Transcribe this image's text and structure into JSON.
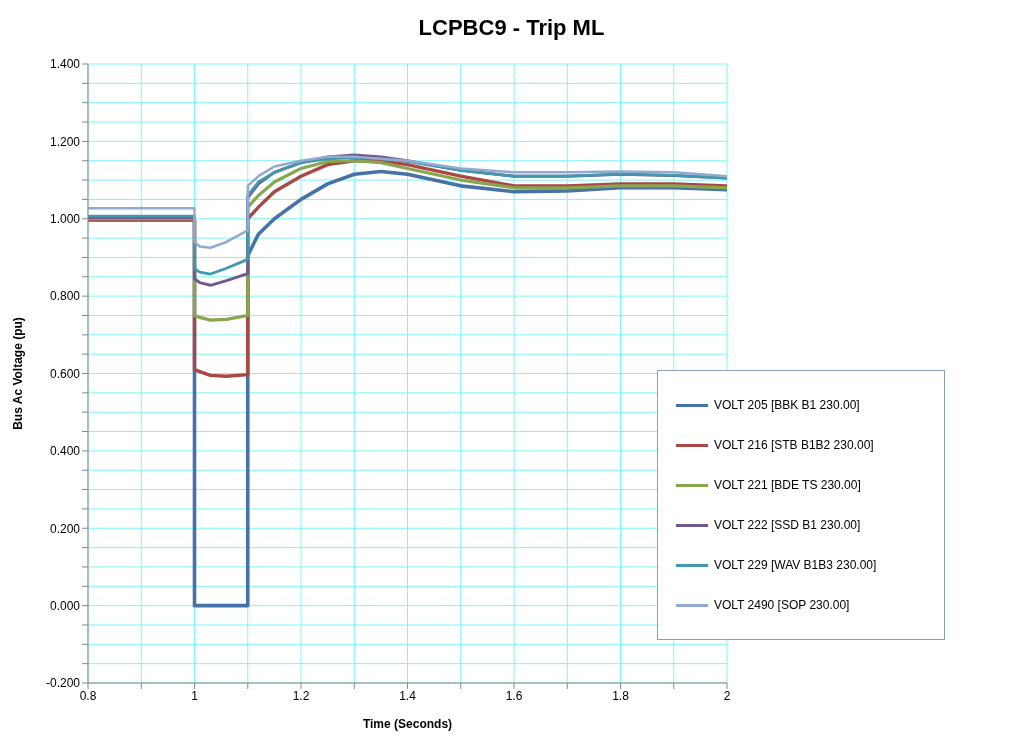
{
  "chart_data": {
    "type": "line",
    "title": "LCPBC9 - Trip ML",
    "xlabel": "Time (Seconds)",
    "ylabel": "Bus Ac Voltage (pu)",
    "x": [
      0.8,
      1,
      1,
      1.01,
      1.03,
      1.06,
      1.1,
      1.1,
      1.12,
      1.15,
      1.2,
      1.25,
      1.3,
      1.35,
      1.4,
      1.5,
      1.6,
      1.7,
      1.8,
      1.9,
      2
    ],
    "series": [
      {
        "name": "VOLT 205 [BBK B1 230.00]",
        "color": "#4572a7",
        "values": [
          0.997,
          0.997,
          0,
          0,
          0,
          0,
          0,
          0.905,
          0.96,
          1.0,
          1.05,
          1.09,
          1.115,
          1.122,
          1.115,
          1.085,
          1.07,
          1.072,
          1.08,
          1.08,
          1.075
        ]
      },
      {
        "name": "VOLT 216 [STB B1B2 230.00]",
        "color": "#aa4643",
        "values": [
          0.997,
          0.997,
          0.61,
          0.605,
          0.595,
          0.593,
          0.597,
          1.0,
          1.03,
          1.07,
          1.11,
          1.14,
          1.15,
          1.15,
          1.14,
          1.11,
          1.085,
          1.085,
          1.09,
          1.09,
          1.085
        ]
      },
      {
        "name": "VOLT 221 [BDE TS 230.00]",
        "color": "#89a54e",
        "values": [
          1.0,
          1.0,
          0.75,
          0.745,
          0.738,
          0.74,
          0.75,
          1.03,
          1.06,
          1.095,
          1.13,
          1.148,
          1.15,
          1.145,
          1.13,
          1.1,
          1.08,
          1.08,
          1.085,
          1.085,
          1.08
        ]
      },
      {
        "name": "VOLT 222 [SSD B1 230.00]",
        "color": "#71588f",
        "values": [
          1.003,
          1.003,
          0.845,
          0.835,
          0.828,
          0.84,
          0.858,
          1.055,
          1.09,
          1.12,
          1.145,
          1.16,
          1.165,
          1.16,
          1.15,
          1.125,
          1.11,
          1.11,
          1.115,
          1.112,
          1.105
        ]
      },
      {
        "name": "VOLT 229 [WAV B1B3 230.00]",
        "color": "#4198af",
        "values": [
          1.007,
          1.007,
          0.87,
          0.862,
          0.857,
          0.872,
          0.895,
          1.06,
          1.095,
          1.12,
          1.145,
          1.155,
          1.158,
          1.155,
          1.148,
          1.125,
          1.11,
          1.11,
          1.115,
          1.112,
          1.105
        ]
      },
      {
        "name": "VOLT 2490 [SOP 230.00]",
        "color": "#93a9cf",
        "values": [
          1.027,
          1.027,
          0.94,
          0.928,
          0.925,
          0.94,
          0.97,
          1.085,
          1.11,
          1.135,
          1.15,
          1.16,
          1.16,
          1.155,
          1.15,
          1.13,
          1.12,
          1.12,
          1.122,
          1.12,
          1.11
        ]
      }
    ],
    "xlim": [
      0.8,
      2
    ],
    "xticks": [
      0.8,
      {
        "value": 0.9,
        "label": null
      },
      1,
      {
        "value": 1.1,
        "label": null
      },
      1.2,
      {
        "value": 1.3,
        "label": null
      },
      1.4,
      {
        "value": 1.5,
        "label": null
      },
      1.6,
      {
        "value": 1.7,
        "label": null
      },
      1.8,
      {
        "value": 1.9,
        "label": null
      },
      2
    ],
    "ylim": [
      -0.2,
      1.4
    ],
    "yticks": [
      {
        "value": -0.2,
        "label": "-0.200"
      },
      {
        "value": -0.15,
        "label": null
      },
      {
        "value": -0.1,
        "label": null
      },
      {
        "value": -0.05,
        "label": null
      },
      {
        "value": 0,
        "label": "0.000"
      },
      {
        "value": 0.05,
        "label": null
      },
      {
        "value": 0.1,
        "label": null
      },
      {
        "value": 0.15,
        "label": null
      },
      {
        "value": 0.2,
        "label": "0.200"
      },
      {
        "value": 0.25,
        "label": null
      },
      {
        "value": 0.3,
        "label": null
      },
      {
        "value": 0.35,
        "label": null
      },
      {
        "value": 0.4,
        "label": "0.400"
      },
      {
        "value": 0.45,
        "label": null
      },
      {
        "value": 0.5,
        "label": null
      },
      {
        "value": 0.55,
        "label": null
      },
      {
        "value": 0.6,
        "label": "0.600"
      },
      {
        "value": 0.65,
        "label": null
      },
      {
        "value": 0.7,
        "label": null
      },
      {
        "value": 0.75,
        "label": null
      },
      {
        "value": 0.8,
        "label": "0.800"
      },
      {
        "value": 0.85,
        "label": null
      },
      {
        "value": 0.9,
        "label": null
      },
      {
        "value": 0.95,
        "label": null
      },
      {
        "value": 1.0,
        "label": "1.000"
      },
      {
        "value": 1.05,
        "label": null
      },
      {
        "value": 1.1,
        "label": null
      },
      {
        "value": 1.15,
        "label": null
      },
      {
        "value": 1.2,
        "label": "1.200"
      },
      {
        "value": 1.25,
        "label": null
      },
      {
        "value": 1.3,
        "label": null
      },
      {
        "value": 1.35,
        "label": null
      },
      {
        "value": 1.4,
        "label": "1.400"
      }
    ],
    "grid": true,
    "legend": "right",
    "marker": "none",
    "line_style": "solid"
  }
}
